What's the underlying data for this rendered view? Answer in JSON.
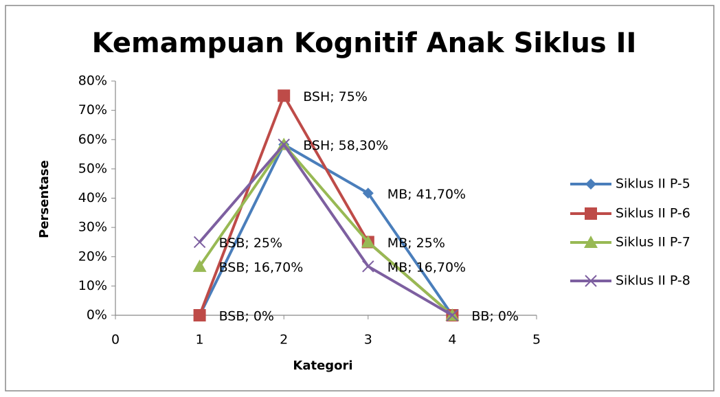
{
  "chart_data": {
    "type": "line",
    "title": "Kemampuan Kognitif Anak Siklus II",
    "xlabel": "Kategori",
    "ylabel": "Persentase",
    "x": [
      1,
      2,
      3,
      4
    ],
    "series": [
      {
        "name": "Siklus II P-5",
        "color": "#4a7ebb",
        "marker": "diamond",
        "values": [
          0,
          58.3,
          41.7,
          0
        ],
        "value_labels": [
          null,
          "BSH; 58,30%",
          "MB; 41,70%",
          null
        ]
      },
      {
        "name": "Siklus II P-6",
        "color": "#be4b48",
        "marker": "square",
        "values": [
          0,
          75,
          25,
          0
        ],
        "value_labels": [
          "BSB; 0%",
          "BSH; 75%",
          "MB; 25%",
          "BB; 0%"
        ]
      },
      {
        "name": "Siklus II P-7",
        "color": "#98b954",
        "marker": "triangle",
        "values": [
          16.7,
          58.3,
          25,
          0
        ],
        "value_labels": [
          "BSB; 16,70%",
          null,
          null,
          null
        ]
      },
      {
        "name": "Siklus II P-8",
        "color": "#7d5fa0",
        "marker": "x",
        "values": [
          25,
          58.3,
          16.7,
          0
        ],
        "value_labels": [
          "BSB; 25%",
          null,
          "MB; 16,70%",
          null
        ]
      }
    ],
    "xlim": [
      0,
      5
    ],
    "xticks": [
      0,
      1,
      2,
      3,
      4,
      5
    ],
    "ylim": [
      0,
      80
    ],
    "yticks": [
      {
        "value": 0,
        "label": "0%"
      },
      {
        "value": 10,
        "label": "10%"
      },
      {
        "value": 20,
        "label": "20%"
      },
      {
        "value": 30,
        "label": "30%"
      },
      {
        "value": 40,
        "label": "40%"
      },
      {
        "value": 50,
        "label": "50%"
      },
      {
        "value": 60,
        "label": "60%"
      },
      {
        "value": 70,
        "label": "70%"
      },
      {
        "value": 80,
        "label": "80%"
      }
    ],
    "grid": false,
    "legend": "right"
  }
}
